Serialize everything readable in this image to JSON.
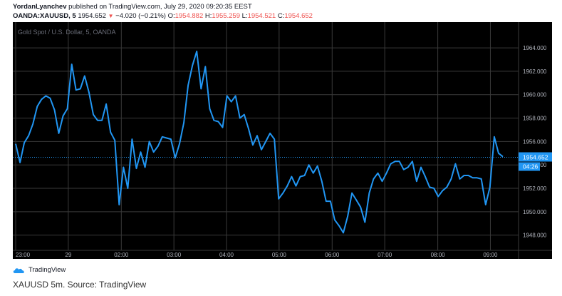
{
  "header": {
    "author": "YordanLyanchev",
    "published_text": "published on TradingView.com, July 29, 2020 09:20:35 EEST",
    "symbol": "OANDA:XAUUSD, 5",
    "last": "1954.652",
    "change": "−4.020 (−0.21%)",
    "o_label": "O:",
    "o_value": "1954.882",
    "h_label": "H:",
    "h_value": "1955.259",
    "l_label": "L:",
    "l_value": "1954.521",
    "c_label": "C:",
    "c_value": "1954.652"
  },
  "chart_data": {
    "type": "line",
    "title": "Gold Spot / U.S. Dollar, 5, OANDA",
    "ylim": [
      1946.7,
      1966.2
    ],
    "y_ticks": [
      "1948.000",
      "1950.000",
      "1952.000",
      "1954.000",
      "1956.000",
      "1958.000",
      "1960.000",
      "1962.000",
      "1964.000"
    ],
    "x_ticks": [
      "23:00",
      "29",
      "02:00",
      "03:00",
      "04:00",
      "05:00",
      "06:00",
      "07:00",
      "08:00",
      "09:00"
    ],
    "series": [
      {
        "values": [
          1955.8,
          1954.2,
          1955.9,
          1956.5,
          1957.5,
          1959.0,
          1959.6,
          1959.9,
          1959.7,
          1958.7,
          1956.7,
          1958.2,
          1958.8,
          1962.6,
          1960.4,
          1960.5,
          1961.6,
          1960.2,
          1958.3,
          1957.8,
          1957.8,
          1959.2,
          1956.8,
          1956.1,
          1950.6,
          1953.8,
          1952.0,
          1956.2,
          1953.7,
          1955.1,
          1953.8,
          1956.0,
          1955.1,
          1955.6,
          1956.4,
          1956.3,
          1956.2,
          1954.6,
          1955.8,
          1957.6,
          1960.8,
          1962.5,
          1963.7,
          1960.5,
          1962.4,
          1958.8,
          1957.8,
          1957.7,
          1957.2,
          1959.9,
          1959.4,
          1959.9,
          1958.0,
          1958.3,
          1957.1,
          1955.7,
          1956.5,
          1955.3,
          1956.0,
          1956.7,
          1956.2,
          1951.1,
          1951.6,
          1952.2,
          1953.0,
          1952.2,
          1953.0,
          1953.1,
          1954.0,
          1953.3,
          1953.9,
          1952.6,
          1950.9,
          1950.9,
          1949.3,
          1948.8,
          1948.2,
          1949.6,
          1951.6,
          1951.0,
          1950.4,
          1949.1,
          1951.6,
          1952.8,
          1953.3,
          1952.6,
          1953.3,
          1954.1,
          1954.3,
          1954.3,
          1953.6,
          1953.8,
          1954.3,
          1952.6,
          1953.8,
          1953.0,
          1952.1,
          1952.0,
          1951.3,
          1951.8,
          1952.1,
          1952.8,
          1954.1,
          1952.8,
          1953.1,
          1953.1,
          1952.9,
          1952.9,
          1952.8,
          1950.6,
          1952.1,
          1956.4,
          1955.0,
          1954.7
        ]
      }
    ],
    "last_price_label": "1954.652",
    "countdown_label": "04:26",
    "grid": true,
    "colors": {
      "background": "#000000",
      "line": "#2196f3",
      "grid": "#3a3a3a",
      "text": "#b2b5be",
      "dotted": "#2196f3",
      "label_bg": "#2196f3"
    }
  },
  "footer": {
    "logo_text": "TradingView",
    "caption": "XAUUSD 5m. Source: TradingView"
  }
}
